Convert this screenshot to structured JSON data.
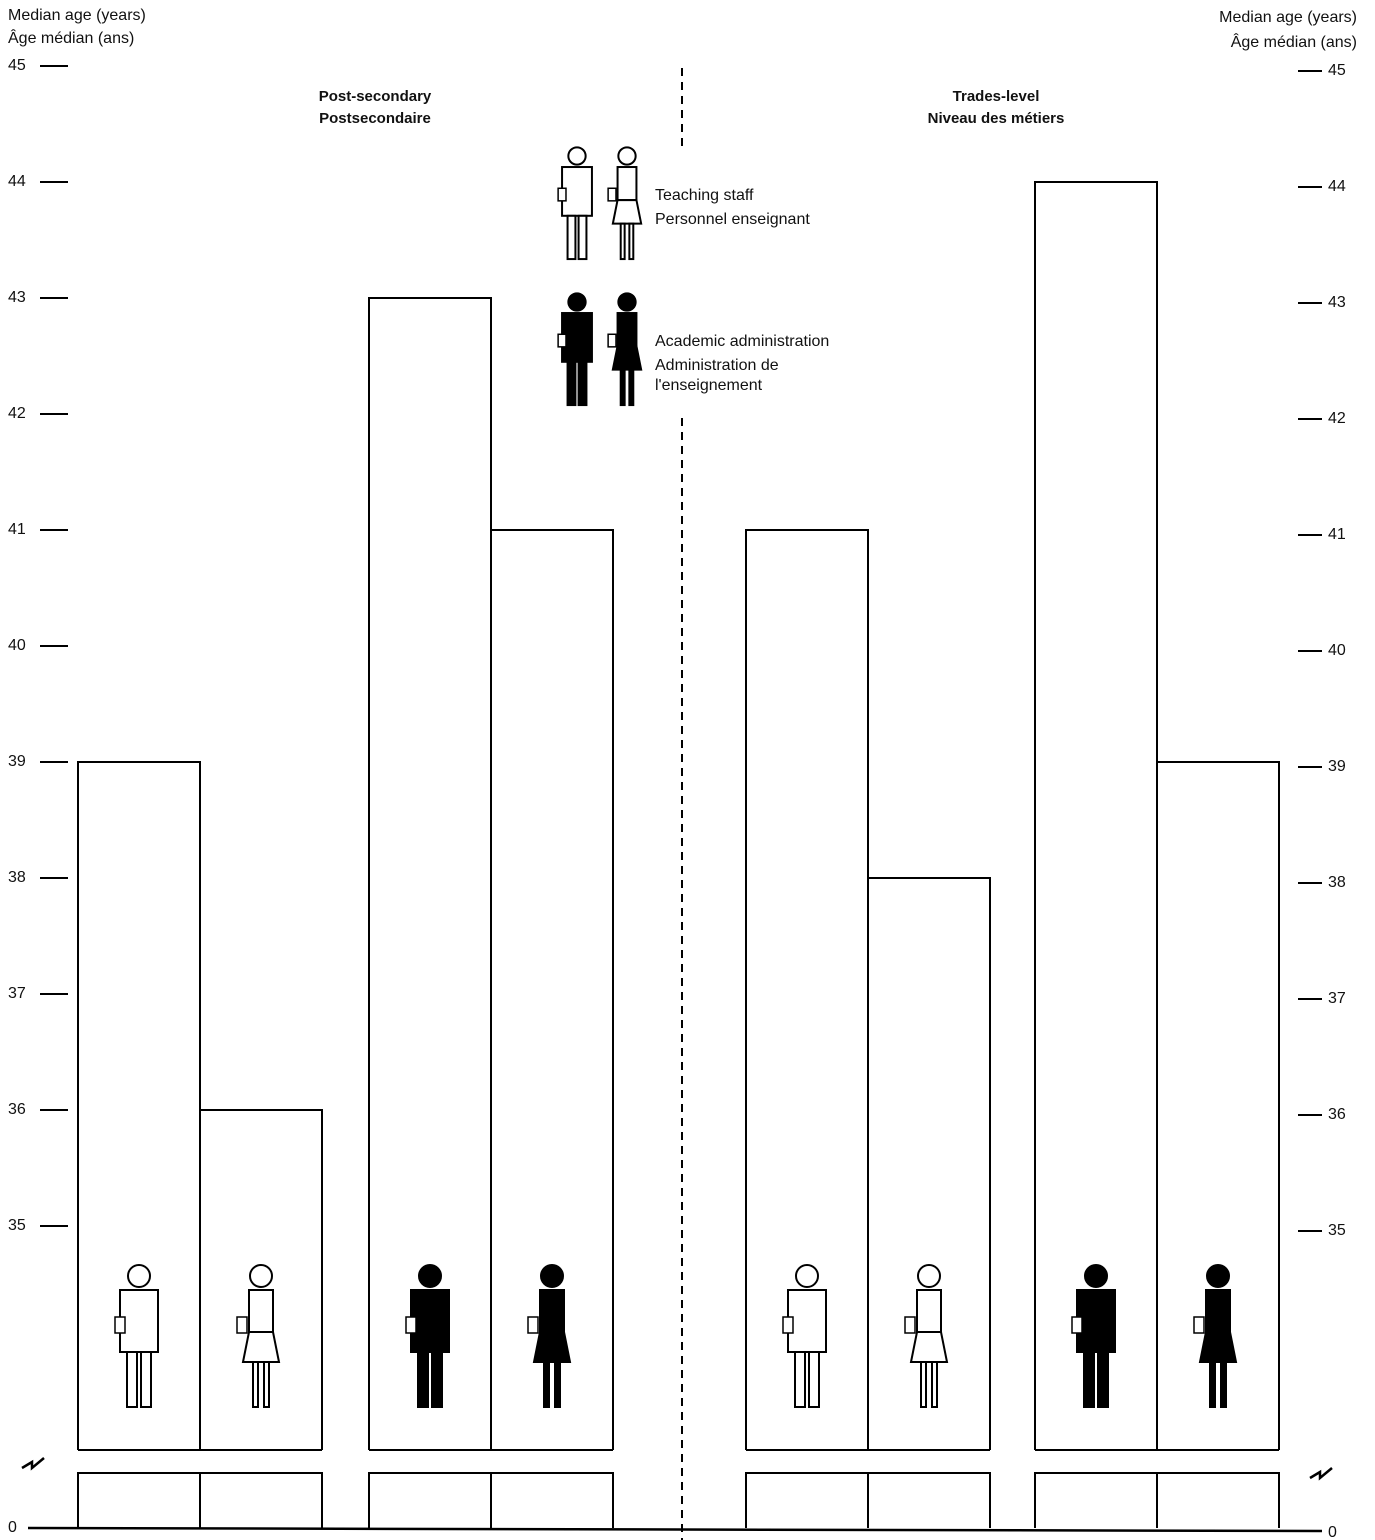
{
  "chart_data": {
    "type": "bar",
    "y_label": [
      "Median age (years)",
      "Âge médian (ans)"
    ],
    "categories": [
      [
        "Post-secondary",
        "Postsecondaire"
      ],
      [
        "Trades-level",
        "Niveau des métiers"
      ]
    ],
    "series": [
      {
        "name": "Teaching staff",
        "name_fr": [
          "Personnel enseignant"
        ],
        "color": "#ffffff",
        "values": [
          [
            39,
            36
          ],
          [
            41,
            38
          ]
        ]
      },
      {
        "name": "Academic administration",
        "name_fr": [
          "Administration de",
          "l'enseignement"
        ],
        "color": "#000000",
        "values": [
          [
            43,
            41
          ],
          [
            44,
            39
          ]
        ]
      }
    ],
    "ylim": [
      35,
      45
    ],
    "yticks": [
      0,
      35,
      36,
      37,
      38,
      39,
      40,
      41,
      42,
      43,
      44,
      45
    ],
    "axis_break": true,
    "mirror_axis": true,
    "grid": false
  }
}
